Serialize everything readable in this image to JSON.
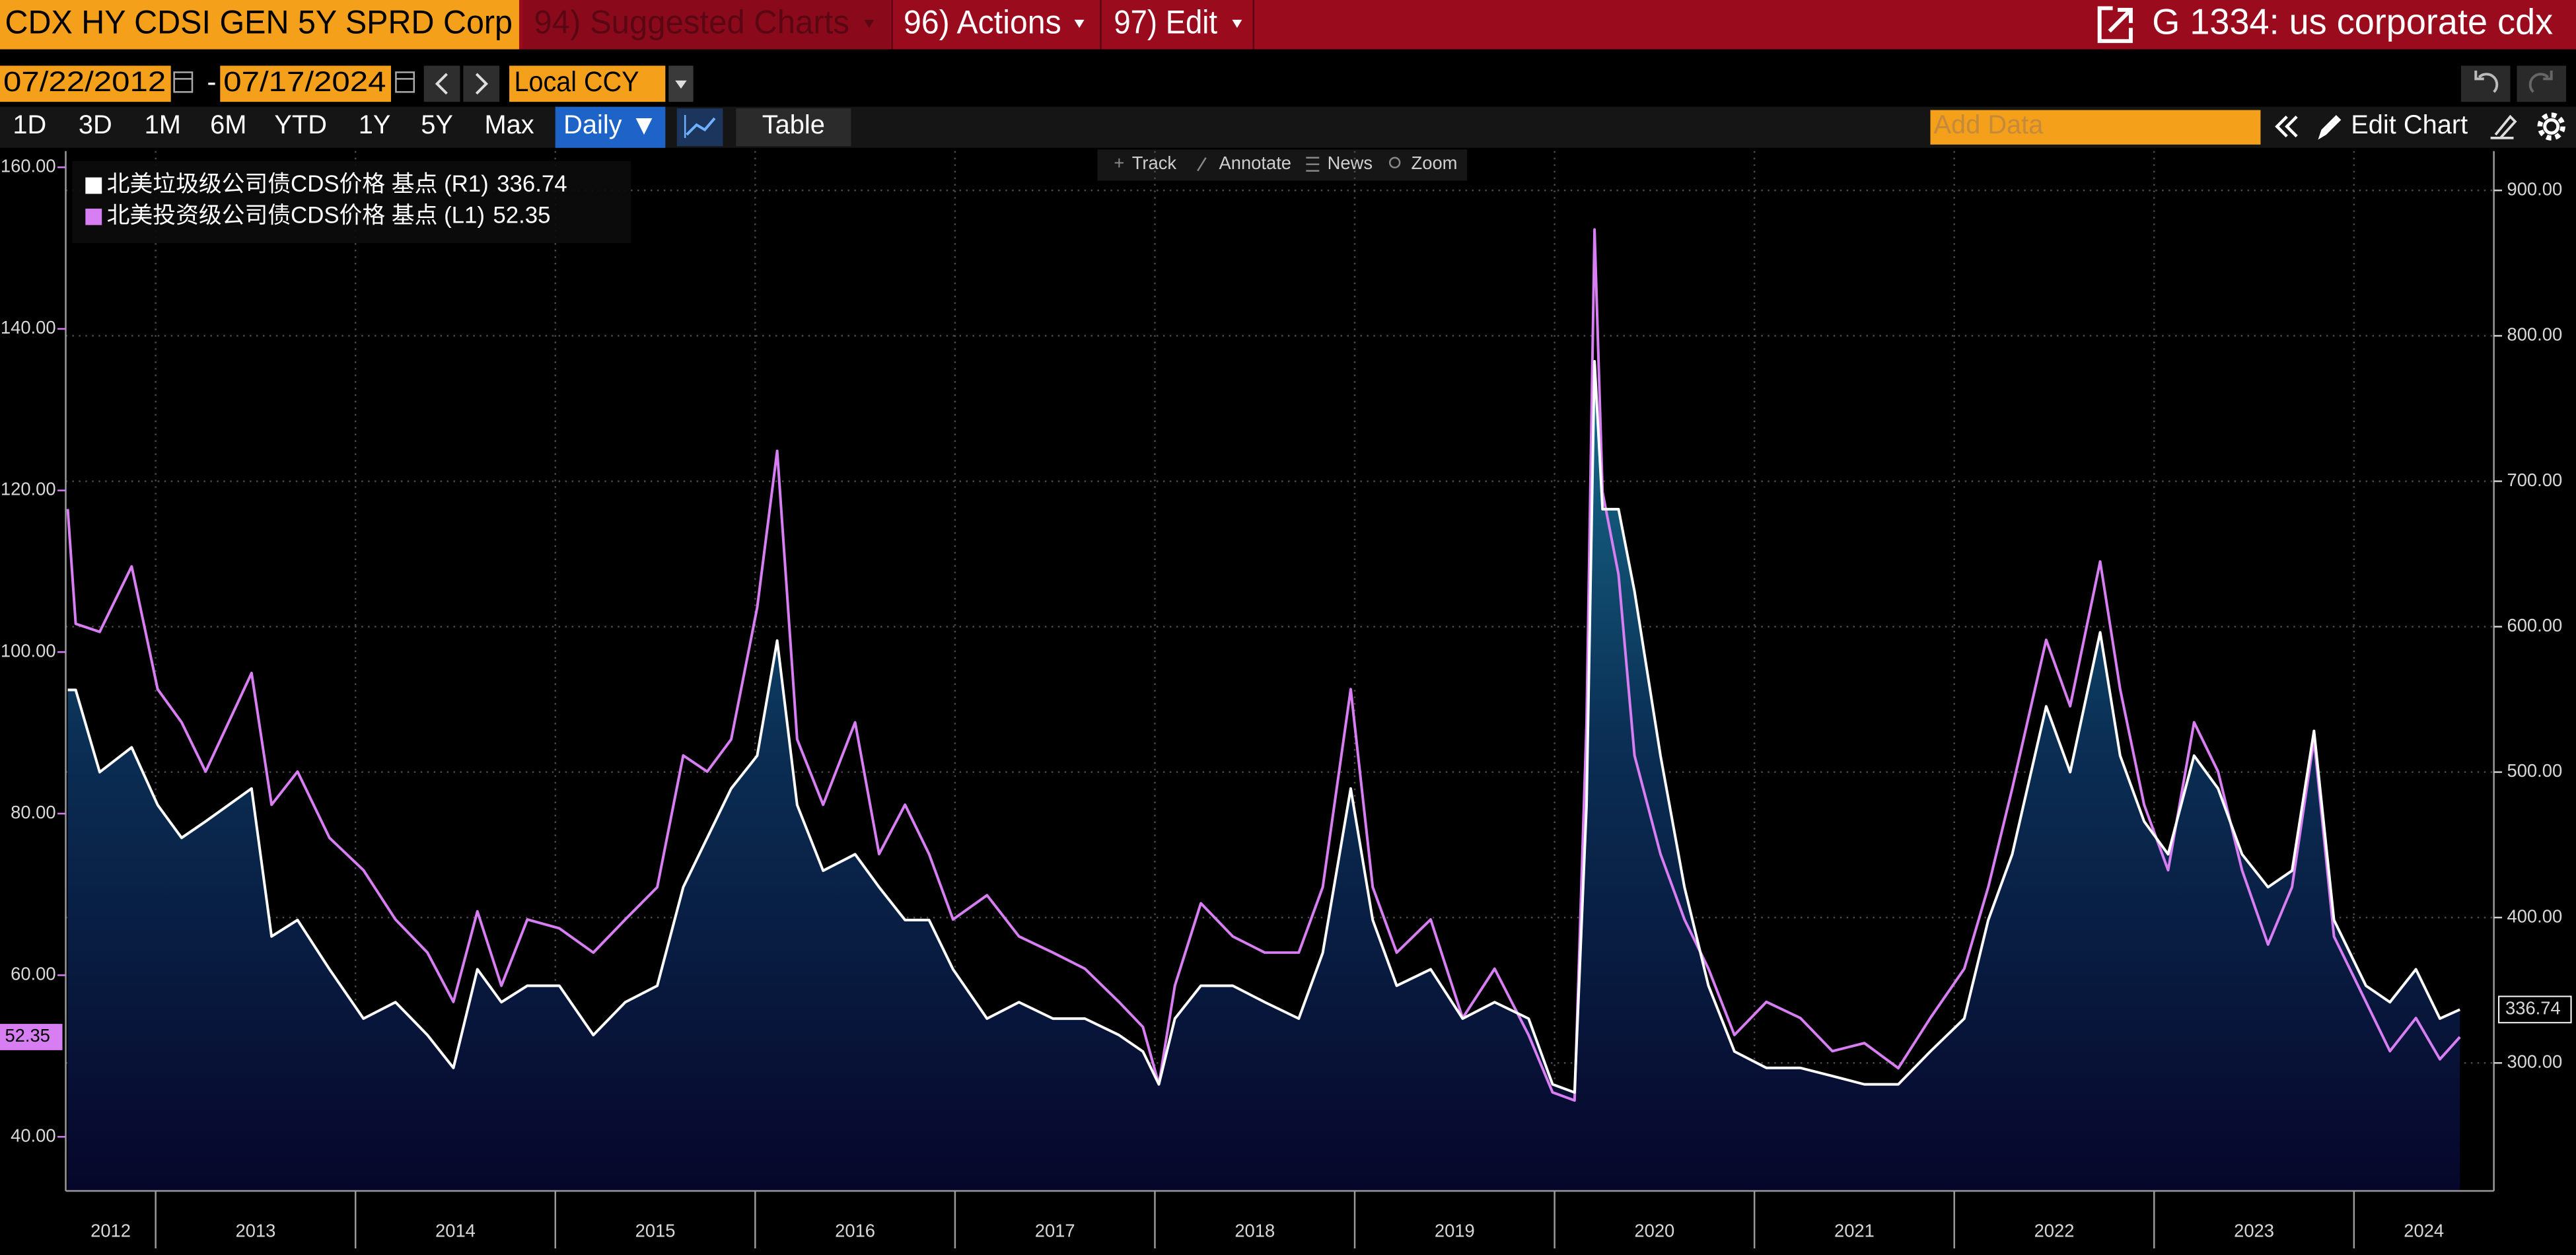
{
  "header": {
    "security": "CDX HY CDSI GEN 5Y SPRD Corp",
    "menus": [
      "94) Suggested Charts",
      "96) Actions",
      "97) Edit"
    ],
    "title": "G 1334: us corporate cdx"
  },
  "date_range": {
    "start": "07/22/2012",
    "separator": "-",
    "end": "07/17/2024",
    "currency": "Local CCY"
  },
  "toolbar": {
    "periods": [
      "1D",
      "3D",
      "1M",
      "6M",
      "YTD",
      "1Y",
      "5Y",
      "Max"
    ],
    "frequency": "Daily",
    "table": "Table",
    "add_data": "Add Data",
    "edit_chart": "Edit Chart"
  },
  "chart_tools": [
    "Track",
    "Annotate",
    "News",
    "Zoom"
  ],
  "chart_data": {
    "type": "line",
    "grid": true,
    "legend": "upper left",
    "x": [
      2012.56,
      2012.6,
      2012.72,
      2012.88,
      2013.01,
      2013.13,
      2013.25,
      2013.48,
      2013.58,
      2013.71,
      2013.87,
      2014.04,
      2014.2,
      2014.36,
      2014.49,
      2014.61,
      2014.73,
      2014.86,
      2015.02,
      2015.19,
      2015.35,
      2015.51,
      2015.64,
      2015.76,
      2015.88,
      2016.01,
      2016.11,
      2016.21,
      2016.34,
      2016.5,
      2016.62,
      2016.75,
      2016.87,
      2016.99,
      2017.16,
      2017.32,
      2017.49,
      2017.65,
      2017.82,
      2017.94,
      2018.02,
      2018.1,
      2018.23,
      2018.39,
      2018.55,
      2018.72,
      2018.84,
      2018.98,
      2019.09,
      2019.21,
      2019.38,
      2019.54,
      2019.7,
      2019.87,
      2019.99,
      2020.1,
      2020.16,
      2020.2,
      2020.24,
      2020.32,
      2020.4,
      2020.53,
      2020.65,
      2020.77,
      2020.9,
      2021.06,
      2021.23,
      2021.39,
      2021.55,
      2021.72,
      2021.88,
      2022.05,
      2022.17,
      2022.29,
      2022.46,
      2022.58,
      2022.73,
      2022.83,
      2022.95,
      2023.07,
      2023.2,
      2023.32,
      2023.44,
      2023.57,
      2023.69,
      2023.8,
      2023.9,
      2024.06,
      2024.18,
      2024.31,
      2024.43,
      2024.53
    ],
    "xlim": [
      2012.55,
      2024.7
    ],
    "xticks": [
      2012,
      2013,
      2014,
      2015,
      2016,
      2017,
      2018,
      2019,
      2020,
      2021,
      2022,
      2023,
      2024
    ],
    "ylim": [
      33.3,
      162
    ],
    "yticks": [
      {
        "value": 40,
        "label": "40.00"
      },
      {
        "value": 60,
        "label": "60.00"
      },
      {
        "value": 80,
        "label": "80.00"
      },
      {
        "value": 100,
        "label": "100.00"
      },
      {
        "value": 120,
        "label": "120.00"
      },
      {
        "value": 140,
        "label": "140.00"
      },
      {
        "value": 160,
        "label": "160.00"
      }
    ],
    "y2lim": [
      212,
      927
    ],
    "y2ticks": [
      {
        "value": 300,
        "label": "300.00"
      },
      {
        "value": 400,
        "label": "400.00"
      },
      {
        "value": 500,
        "label": "500.00"
      },
      {
        "value": 600,
        "label": "600.00"
      },
      {
        "value": 700,
        "label": "700.00"
      },
      {
        "value": 800,
        "label": "800.00"
      },
      {
        "value": 900,
        "label": "900.00"
      }
    ],
    "series": [
      {
        "name": "北美垃圾级公司债CDS价格 基点 (R1)",
        "color": "#ffffff",
        "axis": "y2",
        "fill": true,
        "values": [
          556.5,
          556.5,
          500.0,
          517.0,
          477.4,
          454.8,
          466.1,
          488.7,
          387.0,
          398.3,
          364.4,
          330.5,
          341.8,
          319.2,
          296.6,
          364.4,
          341.8,
          353.1,
          353.1,
          319.2,
          341.8,
          353.1,
          420.9,
          454.8,
          488.7,
          511.3,
          590.4,
          477.4,
          432.2,
          443.5,
          420.9,
          398.3,
          398.3,
          364.4,
          330.5,
          341.8,
          330.5,
          330.5,
          319.2,
          307.9,
          285.3,
          330.5,
          353.1,
          353.1,
          341.8,
          330.5,
          375.7,
          488.7,
          398.3,
          353.1,
          364.4,
          330.5,
          341.8,
          330.5,
          285.3,
          279.7,
          477.4,
          782.5,
          680.8,
          680.8,
          624.3,
          511.3,
          420.9,
          353.1,
          307.9,
          296.6,
          296.6,
          291.0,
          285.3,
          285.3,
          307.9,
          330.5,
          398.3,
          443.5,
          545.2,
          500.0,
          596.1,
          511.3,
          466.1,
          443.5,
          511.3,
          488.7,
          443.5,
          420.9,
          432.2,
          528.3,
          398.3,
          353.1,
          341.8,
          364.4,
          330.5,
          336.74
        ]
      },
      {
        "name": "北美投资级公司债CDS价格 基点 (L1)",
        "color": "#d77ef2",
        "axis": "y",
        "fill": false,
        "values": [
          117.7,
          103.5,
          102.5,
          110.6,
          95.4,
          91.3,
          85.2,
          97.4,
          81.1,
          85.2,
          77.0,
          73.0,
          66.9,
          62.8,
          56.7,
          67.9,
          58.7,
          66.9,
          65.8,
          62.8,
          66.9,
          70.9,
          87.2,
          85.2,
          89.2,
          105.5,
          124.9,
          89.2,
          81.1,
          91.3,
          75.0,
          81.1,
          75.0,
          66.9,
          69.9,
          64.8,
          62.8,
          60.8,
          56.7,
          53.6,
          46.5,
          58.7,
          68.9,
          64.8,
          62.8,
          62.8,
          70.9,
          95.4,
          70.9,
          62.8,
          66.9,
          54.7,
          60.8,
          52.6,
          45.5,
          44.5,
          91.3,
          152.3,
          119.8,
          109.6,
          87.2,
          75.0,
          66.9,
          60.8,
          52.6,
          56.7,
          54.7,
          50.6,
          51.6,
          48.5,
          54.7,
          60.8,
          70.9,
          83.1,
          101.5,
          93.3,
          111.2,
          95.4,
          81.1,
          73.0,
          91.3,
          85.2,
          73.0,
          63.8,
          70.9,
          89.2,
          64.8,
          56.7,
          50.6,
          54.7,
          49.6,
          52.35
        ]
      }
    ]
  }
}
